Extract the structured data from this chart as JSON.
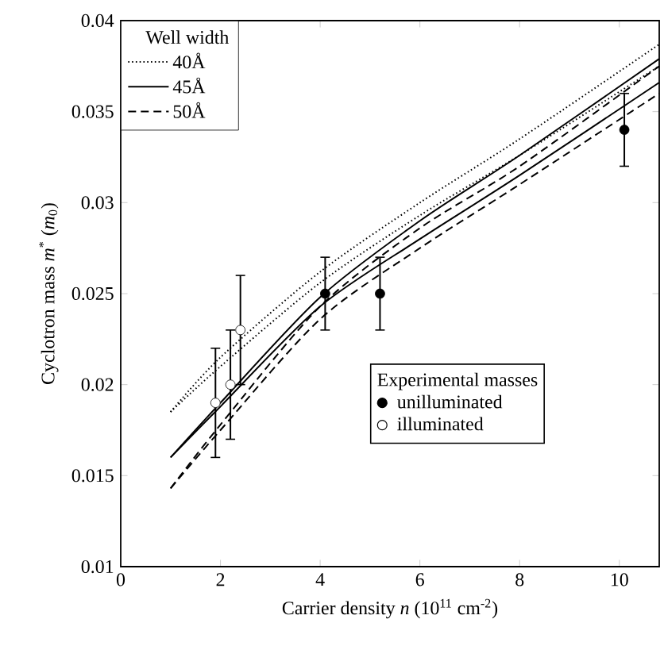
{
  "chart_data": {
    "type": "line",
    "xlabel": "Carrier density *n*  (10$^{11}$ cm$^{-2}$)",
    "ylabel": "Cyclotron mass *m*$^{*}$ (*m*$_{0}$)",
    "xlim": [
      0,
      10.8
    ],
    "ylim": [
      0.01,
      0.04
    ],
    "xticks": [
      0,
      2,
      4,
      6,
      8,
      10
    ],
    "yticks": [
      0.01,
      0.015,
      0.02,
      0.025,
      0.03,
      0.035,
      0.04
    ],
    "legend": "top left",
    "legend_title": "Well width",
    "annotations": [
      "Experimental masses"
    ],
    "series": [
      {
        "name": "40Å",
        "type": "line",
        "line_style": "dotted",
        "color": "#000000",
        "x": [
          1,
          2,
          4,
          6,
          8,
          10.8
        ],
        "values": [
          0.0185,
          0.0215,
          0.0262,
          0.03,
          0.0335,
          0.0387
        ]
      },
      {
        "type": "line",
        "line_style": "dotted",
        "color": "#000000",
        "x": [
          1,
          2,
          4,
          6,
          8,
          10.8
        ],
        "values": [
          0.0185,
          0.021,
          0.0256,
          0.0293,
          0.0326,
          0.0375
        ]
      },
      {
        "name": "45Å",
        "type": "line",
        "line_style": "solid",
        "color": "#000000",
        "x": [
          1,
          2,
          4,
          6,
          8,
          10.8
        ],
        "values": [
          0.016,
          0.019,
          0.0248,
          0.029,
          0.0326,
          0.0379
        ]
      },
      {
        "type": "line",
        "line_style": "solid",
        "color": "#000000",
        "x": [
          1,
          2,
          4,
          6,
          8,
          10.8
        ],
        "values": [
          0.016,
          0.0188,
          0.0243,
          0.028,
          0.0315,
          0.0366
        ]
      },
      {
        "name": "50Å",
        "type": "line",
        "line_style": "dashed",
        "color": "#000000",
        "x": [
          1,
          2,
          4,
          6,
          8,
          10.8
        ],
        "values": [
          0.0143,
          0.0178,
          0.0243,
          0.0286,
          0.032,
          0.0375
        ]
      },
      {
        "type": "line",
        "line_style": "dashed",
        "color": "#000000",
        "x": [
          1,
          2,
          4,
          6,
          8,
          10.8
        ],
        "values": [
          0.0143,
          0.0175,
          0.0236,
          0.0275,
          0.031,
          0.036
        ]
      },
      {
        "name": "unilluminated",
        "type": "scatter",
        "marker": "circle",
        "color": "#000000",
        "x": [
          4.1,
          5.2,
          10.1
        ],
        "values": [
          0.025,
          0.025,
          0.034
        ],
        "errors": [
          0.002,
          0.002,
          0.002
        ]
      },
      {
        "name": "illuminated",
        "type": "scatter",
        "marker": "circle",
        "color": "#ffffff",
        "x": [
          1.9,
          2.2,
          2.4
        ],
        "values": [
          0.019,
          0.02,
          0.023
        ],
        "errors": [
          0.003,
          0.003,
          0.003
        ]
      }
    ]
  }
}
